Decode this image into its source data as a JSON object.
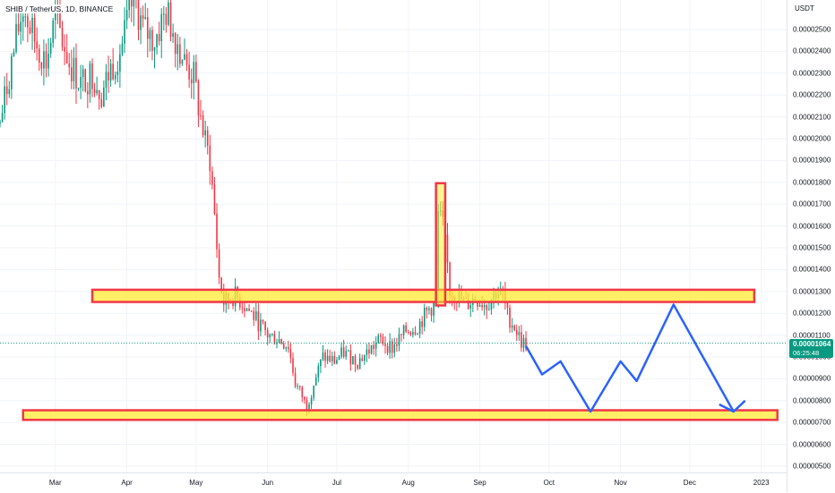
{
  "header": {
    "symbol": "SHIB / TetherUS, 1D, BINANCE"
  },
  "price_axis": {
    "unit": "USDT",
    "ticks": [
      "0.00002500",
      "0.00002400",
      "0.00002300",
      "0.00002200",
      "0.00002100",
      "0.00002000",
      "0.00001900",
      "0.00001800",
      "0.00001700",
      "0.00001600",
      "0.00001500",
      "0.00001400",
      "0.00001300",
      "0.00001200",
      "0.00001100",
      "0.00001000",
      "0.00000900",
      "0.00000800",
      "0.00000700",
      "0.00000600",
      "0.00000500"
    ]
  },
  "time_axis": {
    "ticks": [
      "Mar",
      "Apr",
      "May",
      "Jun",
      "Jul",
      "Aug",
      "Sep",
      "Oct",
      "Nov",
      "Dec",
      "2023"
    ]
  },
  "current_price": {
    "value": "0.00001064",
    "countdown": "06:25:48"
  },
  "colors": {
    "up": "#089981",
    "down": "#f23645",
    "zone_fill": "#ffeb3b",
    "zone_stroke": "#f23645",
    "projection": "#2962ff",
    "price_line": "#089981",
    "grid": "#f0f3fa"
  },
  "chart_data": {
    "type": "candlestick",
    "symbol": "SHIB / TetherUS",
    "interval": "1D",
    "exchange": "BINANCE",
    "y_unit": "USDT",
    "ylim": [
      4.6e-06,
      2.62e-05
    ],
    "xlim": [
      "2022-02-05",
      "2023-01-12"
    ],
    "grid": true,
    "series": [
      {
        "name": "SHIB / TetherUS",
        "points": [
          {
            "x": "2022-02-05",
            "y": 2.07e-05
          },
          {
            "x": "2022-02-10",
            "y": 2.35e-05
          },
          {
            "x": "2022-02-15",
            "y": 2.6e-05
          },
          {
            "x": "2022-02-20",
            "y": 2.45e-05
          },
          {
            "x": "2022-02-25",
            "y": 2.35e-05
          },
          {
            "x": "2022-03-01",
            "y": 2.55e-05
          },
          {
            "x": "2022-03-07",
            "y": 2.35e-05
          },
          {
            "x": "2022-03-12",
            "y": 2.25e-05
          },
          {
            "x": "2022-03-17",
            "y": 2.3e-05
          },
          {
            "x": "2022-03-21",
            "y": 2.21e-05
          },
          {
            "x": "2022-03-25",
            "y": 2.32e-05
          },
          {
            "x": "2022-03-30",
            "y": 2.43e-05
          },
          {
            "x": "2022-04-04",
            "y": 2.65e-05
          },
          {
            "x": "2022-04-08",
            "y": 2.5e-05
          },
          {
            "x": "2022-04-13",
            "y": 2.45e-05
          },
          {
            "x": "2022-04-18",
            "y": 2.58e-05
          },
          {
            "x": "2022-04-21",
            "y": 2.5e-05
          },
          {
            "x": "2022-04-26",
            "y": 2.35e-05
          },
          {
            "x": "2022-04-30",
            "y": 2.28e-05
          },
          {
            "x": "2022-05-02",
            "y": 2.15e-05
          },
          {
            "x": "2022-05-05",
            "y": 1.98e-05
          },
          {
            "x": "2022-05-07",
            "y": 1.9e-05
          },
          {
            "x": "2022-05-09",
            "y": 1.65e-05
          },
          {
            "x": "2022-05-11",
            "y": 1.36e-05
          },
          {
            "x": "2022-05-13",
            "y": 1.25e-05
          },
          {
            "x": "2022-05-18",
            "y": 1.28e-05
          },
          {
            "x": "2022-05-25",
            "y": 1.2e-05
          },
          {
            "x": "2022-06-01",
            "y": 1.1e-05
          },
          {
            "x": "2022-06-06",
            "y": 1.08e-05
          },
          {
            "x": "2022-06-10",
            "y": 1.05e-05
          },
          {
            "x": "2022-06-13",
            "y": 8.8e-06
          },
          {
            "x": "2022-06-16",
            "y": 8.2e-06
          },
          {
            "x": "2022-06-18",
            "y": 7.7e-06
          },
          {
            "x": "2022-06-21",
            "y": 8.8e-06
          },
          {
            "x": "2022-06-25",
            "y": 1e-05
          },
          {
            "x": "2022-06-30",
            "y": 9.8e-06
          },
          {
            "x": "2022-07-04",
            "y": 1.02e-05
          },
          {
            "x": "2022-07-10",
            "y": 9.8e-06
          },
          {
            "x": "2022-07-15",
            "y": 1.03e-05
          },
          {
            "x": "2022-07-20",
            "y": 1.08e-05
          },
          {
            "x": "2022-07-25",
            "y": 1.04e-05
          },
          {
            "x": "2022-07-31",
            "y": 1.12e-05
          },
          {
            "x": "2022-08-05",
            "y": 1.14e-05
          },
          {
            "x": "2022-08-10",
            "y": 1.22e-05
          },
          {
            "x": "2022-08-13",
            "y": 1.24e-05
          },
          {
            "x": "2022-08-14",
            "y": 1.65e-05
          },
          {
            "x": "2022-08-16",
            "y": 1.6e-05
          },
          {
            "x": "2022-08-18",
            "y": 1.42e-05
          },
          {
            "x": "2022-08-19",
            "y": 1.3e-05
          },
          {
            "x": "2022-08-22",
            "y": 1.28e-05
          },
          {
            "x": "2022-08-26",
            "y": 1.24e-05
          },
          {
            "x": "2022-08-30",
            "y": 1.27e-05
          },
          {
            "x": "2022-09-04",
            "y": 1.24e-05
          },
          {
            "x": "2022-09-08",
            "y": 1.3e-05
          },
          {
            "x": "2022-09-11",
            "y": 1.28e-05
          },
          {
            "x": "2022-09-13",
            "y": 1.19e-05
          },
          {
            "x": "2022-09-16",
            "y": 1.14e-05
          },
          {
            "x": "2022-09-19",
            "y": 1.07e-05
          },
          {
            "x": "2022-09-21",
            "y": 1.06e-05
          }
        ]
      }
    ],
    "horizontal_zones": [
      {
        "from": "2022-03-17",
        "to": "2022-12-29",
        "y_low": 1.252e-05,
        "y_high": 1.308e-05
      },
      {
        "from": "2022-02-15",
        "to": "2023-01-08",
        "y_low": 7.12e-06,
        "y_high": 7.56e-06
      }
    ],
    "highlight_box": {
      "from": "2022-08-13",
      "to": "2022-08-17",
      "y_low": 1.236e-05,
      "y_high": 1.796e-05
    },
    "projection_path": [
      {
        "x": "2022-09-21",
        "y": 1.05e-05
      },
      {
        "x": "2022-09-28",
        "y": 9.2e-06
      },
      {
        "x": "2022-10-06",
        "y": 9.8e-06
      },
      {
        "x": "2022-10-19",
        "y": 7.5e-06
      },
      {
        "x": "2022-11-01",
        "y": 9.8e-06
      },
      {
        "x": "2022-11-08",
        "y": 8.9e-06
      },
      {
        "x": "2022-11-24",
        "y": 1.24e-05
      },
      {
        "x": "2022-12-20",
        "y": 7.5e-06
      },
      {
        "x": "2022-12-25",
        "y": 8e-06
      }
    ],
    "last_price": 1.064e-05
  }
}
